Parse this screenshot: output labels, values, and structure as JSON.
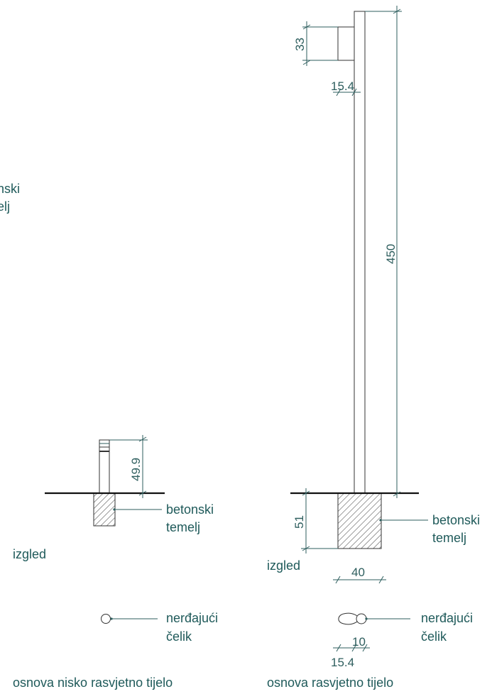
{
  "dimensions": {
    "left_height": "49.9",
    "head_height": "33",
    "pole_width_top": "15.4",
    "pole_height": "450",
    "foundation_depth": "51",
    "foundation_width": "40",
    "base_width_small": "10",
    "base_width_large": "15.4"
  },
  "labels": {
    "cut_left_1": "nski",
    "cut_left_2": "elj",
    "foundation_left_1": "betonski",
    "foundation_left_2": "temelj",
    "view_left": "izgled",
    "material_left_1": "nerđajući",
    "material_left_2": "čelik",
    "caption_left": "osnova nisko rasvjetno tijelo",
    "foundation_right_1": "betonski",
    "foundation_right_2": "temelj",
    "view_right": "izgled",
    "material_right_1": "nerđajući",
    "material_right_2": "čelik",
    "caption_right": "osnova rasvjetno tijelo"
  },
  "colors": {
    "annotation": "#2e5e5e",
    "outline": "#333333"
  }
}
